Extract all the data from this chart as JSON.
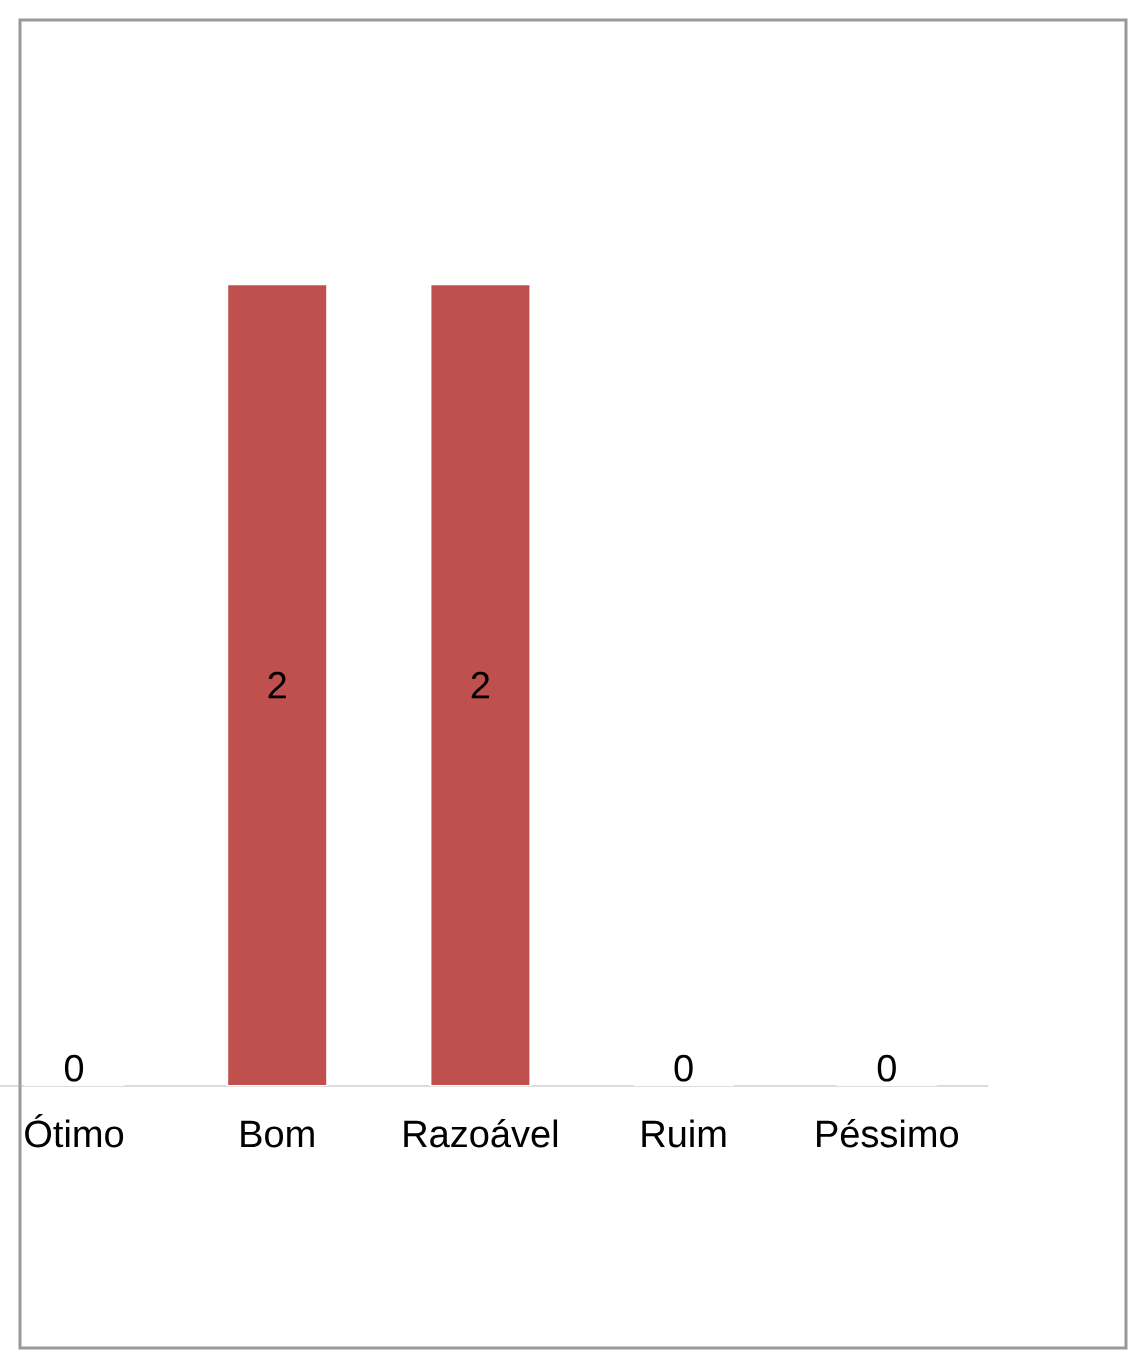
{
  "chart_data": {
    "type": "bar",
    "categories": [
      "Ótimo",
      "Bom",
      "Razoável",
      "Ruim",
      "Péssimo"
    ],
    "values": [
      0,
      2,
      2,
      0,
      0
    ],
    "color": "#c0504d",
    "data_labels": true
  }
}
